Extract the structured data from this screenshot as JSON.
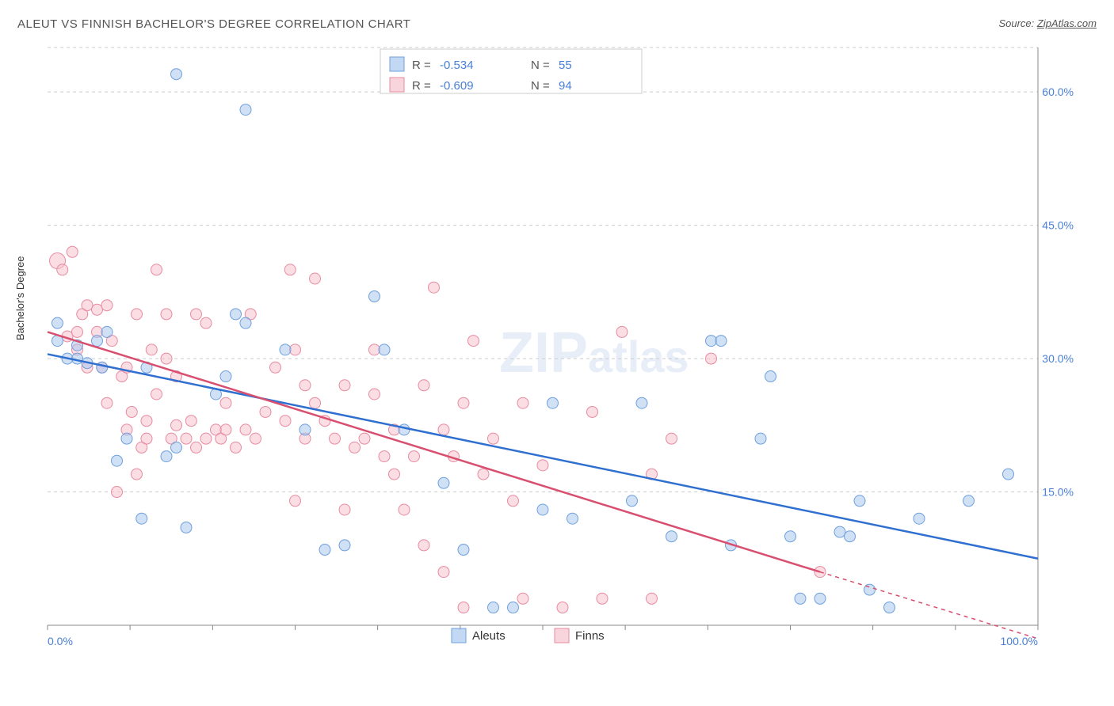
{
  "title": "ALEUT VS FINNISH BACHELOR'S DEGREE CORRELATION CHART",
  "source_label": "Source: ",
  "source_link": "ZipAtlas.com",
  "ylabel": "Bachelor's Degree",
  "watermark_bold": "ZIP",
  "watermark_light": "atlas",
  "chart": {
    "type": "scatter",
    "xlim": [
      0,
      100
    ],
    "ylim": [
      0,
      65
    ],
    "x_axis_labels": {
      "start": "0.0%",
      "end": "100.0%"
    },
    "y_ticks": [
      15.0,
      30.0,
      45.0,
      60.0
    ],
    "y_tick_labels": [
      "15.0%",
      "30.0%",
      "45.0%",
      "60.0%"
    ],
    "x_tick_positions": [
      0,
      8.33,
      16.67,
      25,
      33.33,
      41.67,
      50,
      58.33,
      66.67,
      75,
      83.33,
      91.67,
      100
    ],
    "background_color": "#ffffff",
    "grid_color": "#cccccc",
    "axis_color": "#888888",
    "label_color": "#4a80d6",
    "series": [
      {
        "name": "Aleuts",
        "fill": "#a9c7ec",
        "fill_opacity": 0.55,
        "stroke": "#6fa0dd",
        "stroke_width": 1,
        "trend_color": "#2f6fd0",
        "trend_width": 2.5,
        "trend_start": [
          0,
          30.5
        ],
        "trend_end": [
          100,
          7.5
        ],
        "R": "-0.534",
        "N": "55",
        "points": [
          [
            1,
            34,
            7
          ],
          [
            1,
            32,
            7
          ],
          [
            2,
            30,
            7
          ],
          [
            3,
            31.5,
            7
          ],
          [
            3,
            30,
            7
          ],
          [
            4,
            29.5,
            7
          ],
          [
            5,
            32,
            7
          ],
          [
            5.5,
            29,
            7
          ],
          [
            6,
            33,
            7
          ],
          [
            7,
            18.5,
            7
          ],
          [
            8,
            21,
            7
          ],
          [
            9.5,
            12,
            7
          ],
          [
            10,
            29,
            7
          ],
          [
            12,
            19,
            7
          ],
          [
            13,
            62,
            7
          ],
          [
            13,
            20,
            7
          ],
          [
            14,
            11,
            7
          ],
          [
            17,
            26,
            7
          ],
          [
            18,
            28,
            7
          ],
          [
            19,
            35,
            7
          ],
          [
            20,
            58,
            7
          ],
          [
            20,
            34,
            7
          ],
          [
            24,
            31,
            7
          ],
          [
            26,
            22,
            7
          ],
          [
            28,
            8.5,
            7
          ],
          [
            30,
            9,
            7
          ],
          [
            33,
            37,
            7
          ],
          [
            34,
            31,
            7
          ],
          [
            36,
            22,
            7
          ],
          [
            40,
            16,
            7
          ],
          [
            42,
            8.5,
            7
          ],
          [
            45,
            2,
            7
          ],
          [
            47,
            2,
            7
          ],
          [
            50,
            13,
            7
          ],
          [
            51,
            25,
            7
          ],
          [
            53,
            12,
            7
          ],
          [
            59,
            14,
            7
          ],
          [
            60,
            25,
            7
          ],
          [
            63,
            10,
            7
          ],
          [
            67,
            32,
            7
          ],
          [
            68,
            32,
            7
          ],
          [
            69,
            9,
            7
          ],
          [
            72,
            21,
            7
          ],
          [
            73,
            28,
            7
          ],
          [
            75,
            10,
            7
          ],
          [
            76,
            3,
            7
          ],
          [
            78,
            3,
            7
          ],
          [
            80,
            10.5,
            7
          ],
          [
            81,
            10,
            7
          ],
          [
            82,
            14,
            7
          ],
          [
            83,
            4,
            7
          ],
          [
            85,
            2,
            7
          ],
          [
            88,
            12,
            7
          ],
          [
            93,
            14,
            7
          ],
          [
            97,
            17,
            7
          ]
        ]
      },
      {
        "name": "Finns",
        "fill": "#f5c3cd",
        "fill_opacity": 0.55,
        "stroke": "#e88ba0",
        "stroke_width": 1,
        "trend_color": "#d94f70",
        "trend_width": 2.5,
        "trend_start": [
          0,
          33
        ],
        "trend_end": [
          78,
          6
        ],
        "trend_dashed_end": [
          100,
          -1.5
        ],
        "R": "-0.609",
        "N": "94",
        "points": [
          [
            1,
            41,
            10
          ],
          [
            1.5,
            40,
            7
          ],
          [
            2,
            32.5,
            7
          ],
          [
            2.5,
            42,
            7
          ],
          [
            3,
            31,
            7
          ],
          [
            3,
            33,
            7
          ],
          [
            3.5,
            35,
            7
          ],
          [
            4,
            29,
            7
          ],
          [
            4,
            36,
            7
          ],
          [
            5,
            33,
            7
          ],
          [
            5,
            35.5,
            7
          ],
          [
            5.5,
            29,
            7
          ],
          [
            6,
            25,
            7
          ],
          [
            6,
            36,
            7
          ],
          [
            6.5,
            32,
            7
          ],
          [
            7,
            15,
            7
          ],
          [
            7.5,
            28,
            7
          ],
          [
            8,
            29,
            7
          ],
          [
            8,
            22,
            7
          ],
          [
            8.5,
            24,
            7
          ],
          [
            9,
            17,
            7
          ],
          [
            9,
            35,
            7
          ],
          [
            9.5,
            20,
            7
          ],
          [
            10,
            21,
            7
          ],
          [
            10,
            23,
            7
          ],
          [
            10.5,
            31,
            7
          ],
          [
            11,
            40,
            7
          ],
          [
            11,
            26,
            7
          ],
          [
            12,
            30,
            7
          ],
          [
            12,
            35,
            7
          ],
          [
            12.5,
            21,
            7
          ],
          [
            13,
            22.5,
            7
          ],
          [
            13,
            28,
            7
          ],
          [
            14,
            21,
            7
          ],
          [
            14.5,
            23,
            7
          ],
          [
            15,
            35,
            7
          ],
          [
            15,
            20,
            7
          ],
          [
            16,
            21,
            7
          ],
          [
            16,
            34,
            7
          ],
          [
            17,
            22,
            7
          ],
          [
            17.5,
            21,
            7
          ],
          [
            18,
            25,
            7
          ],
          [
            18,
            22,
            7
          ],
          [
            19,
            20,
            7
          ],
          [
            20,
            22,
            7
          ],
          [
            20.5,
            35,
            7
          ],
          [
            21,
            21,
            7
          ],
          [
            22,
            24,
            7
          ],
          [
            23,
            29,
            7
          ],
          [
            24,
            23,
            7
          ],
          [
            24.5,
            40,
            7
          ],
          [
            25,
            31,
            7
          ],
          [
            25,
            14,
            7
          ],
          [
            26,
            27,
            7
          ],
          [
            26,
            21,
            7
          ],
          [
            27,
            39,
            7
          ],
          [
            27,
            25,
            7
          ],
          [
            28,
            23,
            7
          ],
          [
            29,
            21,
            7
          ],
          [
            30,
            27,
            7
          ],
          [
            30,
            13,
            7
          ],
          [
            31,
            20,
            7
          ],
          [
            32,
            21,
            7
          ],
          [
            33,
            26,
            7
          ],
          [
            33,
            31,
            7
          ],
          [
            34,
            19,
            7
          ],
          [
            35,
            22,
            7
          ],
          [
            35,
            17,
            7
          ],
          [
            36,
            13,
            7
          ],
          [
            37,
            19,
            7
          ],
          [
            38,
            27,
            7
          ],
          [
            38,
            9,
            7
          ],
          [
            39,
            38,
            7
          ],
          [
            40,
            22,
            7
          ],
          [
            40,
            6,
            7
          ],
          [
            41,
            19,
            7
          ],
          [
            42,
            25,
            7
          ],
          [
            42,
            2,
            7
          ],
          [
            43,
            32,
            7
          ],
          [
            44,
            17,
            7
          ],
          [
            45,
            21,
            7
          ],
          [
            47,
            14,
            7
          ],
          [
            48,
            25,
            7
          ],
          [
            48,
            3,
            7
          ],
          [
            50,
            18,
            7
          ],
          [
            52,
            2,
            7
          ],
          [
            55,
            24,
            7
          ],
          [
            56,
            3,
            7
          ],
          [
            58,
            33,
            7
          ],
          [
            61,
            17,
            7
          ],
          [
            61,
            3,
            7
          ],
          [
            63,
            21,
            7
          ],
          [
            67,
            30,
            7
          ],
          [
            78,
            6,
            7
          ]
        ]
      }
    ],
    "legend_top": {
      "R_label": "R =",
      "N_label": "N ="
    },
    "bottom_legend": [
      "Aleuts",
      "Finns"
    ]
  }
}
